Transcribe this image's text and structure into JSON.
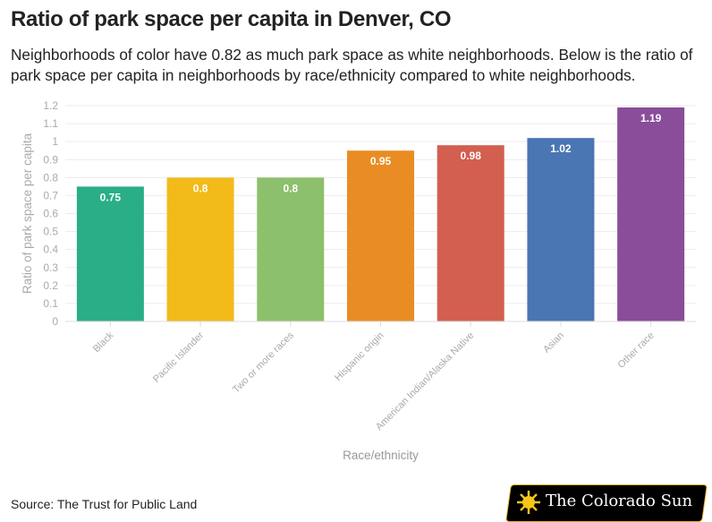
{
  "title": "Ratio of park space per capita in Denver, CO",
  "subtitle": "Neighborhoods of color have 0.82 as much park space as white neighborhoods. Below is the ratio of park space per capita in neighborhoods by race/ethnicity compared to white neighborhoods.",
  "source": "Source: The Trust for Public Land",
  "logo_text": "The Colorado Sun",
  "chart_data": {
    "type": "bar",
    "title": "Ratio of park space per capita in Denver, CO",
    "xlabel": "Race/ethnicity",
    "ylabel": "Ratio of park space per capita",
    "ylim": [
      0,
      1.2
    ],
    "yticks": [
      "0",
      "0.1",
      "0.2",
      "0.3",
      "0.4",
      "0.5",
      "0.6",
      "0.7",
      "0.8",
      "0.9",
      "1",
      "1.1",
      "1.2"
    ],
    "grid": true,
    "categories": [
      "Black",
      "Pacific Islander",
      "Two or more races",
      "Hispanic origin",
      "American Indian/Alaska Native",
      "Asian",
      "Other race"
    ],
    "values": [
      0.75,
      0.8,
      0.8,
      0.95,
      0.98,
      1.02,
      1.19
    ],
    "labels": [
      "0.75",
      "0.8",
      "0.8",
      "0.95",
      "0.98",
      "1.02",
      "1.19"
    ],
    "colors": [
      "#2aae87",
      "#f2bb1a",
      "#8cc06c",
      "#ea8c24",
      "#d25f4f",
      "#4a76b3",
      "#8a4d99"
    ]
  }
}
